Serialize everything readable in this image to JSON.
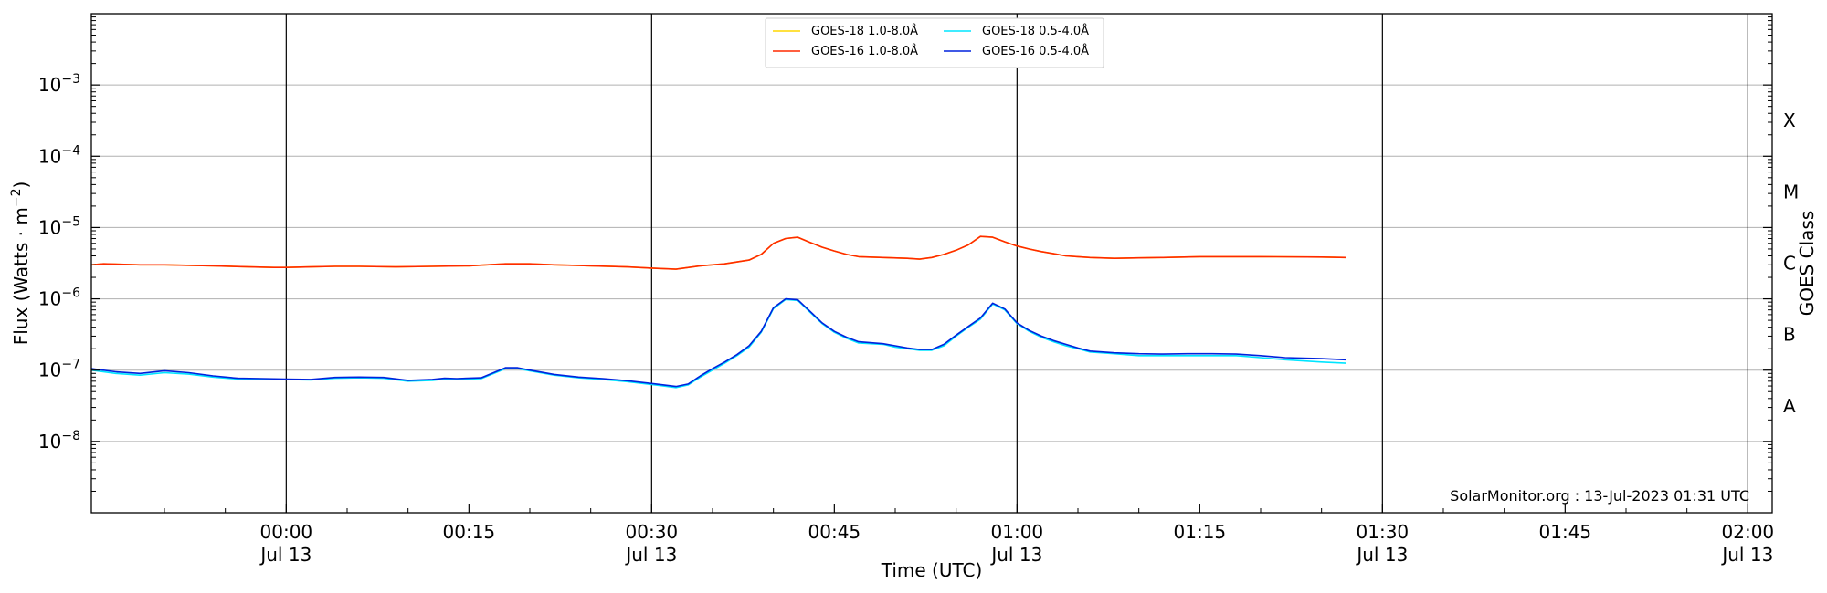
{
  "chart_data": {
    "type": "line",
    "title": "",
    "xlabel": "Time (UTC)",
    "ylabel": "Flux (Watts · m",
    "ylabel_sup": "−2",
    "ylabel_close": ")",
    "y2label": "GOES Class",
    "yscale": "log",
    "xlim": [
      "2023-07-12 23:44",
      "2023-07-13 02:02"
    ],
    "ylim": [
      1e-09,
      0.01
    ],
    "x_ticks": [
      {
        "t": "2023-07-13 00:00",
        "time": "00:00",
        "date": "Jul 13"
      },
      {
        "t": "2023-07-13 00:15",
        "time": "00:15",
        "date": ""
      },
      {
        "t": "2023-07-13 00:30",
        "time": "00:30",
        "date": "Jul 13"
      },
      {
        "t": "2023-07-13 00:45",
        "time": "00:45",
        "date": ""
      },
      {
        "t": "2023-07-13 01:00",
        "time": "01:00",
        "date": "Jul 13"
      },
      {
        "t": "2023-07-13 01:15",
        "time": "01:15",
        "date": ""
      },
      {
        "t": "2023-07-13 01:30",
        "time": "01:30",
        "date": "Jul 13"
      },
      {
        "t": "2023-07-13 01:45",
        "time": "01:45",
        "date": ""
      },
      {
        "t": "2023-07-13 02:00",
        "time": "02:00",
        "date": "Jul 13"
      }
    ],
    "vertical_lines": [
      "2023-07-13 00:00",
      "2023-07-13 00:30",
      "2023-07-13 01:00",
      "2023-07-13 01:30",
      "2023-07-13 02:00"
    ],
    "y_ticks": [
      {
        "value": 1e-08,
        "base": "10",
        "exp": "−8"
      },
      {
        "value": 1e-07,
        "base": "10",
        "exp": "−7"
      },
      {
        "value": 1e-06,
        "base": "10",
        "exp": "−6"
      },
      {
        "value": 1e-05,
        "base": "10",
        "exp": "−5"
      },
      {
        "value": 0.0001,
        "base": "10",
        "exp": "−4"
      },
      {
        "value": 0.001,
        "base": "10",
        "exp": "−3"
      }
    ],
    "gridlines_y": [
      1e-08,
      1e-07,
      1e-06,
      1e-05,
      0.0001,
      0.001
    ],
    "goes_classes": [
      {
        "label": "A",
        "value": 3.16e-08
      },
      {
        "label": "B",
        "value": 3.16e-07
      },
      {
        "label": "C",
        "value": 3.16e-06
      },
      {
        "label": "M",
        "value": 3.16e-05
      },
      {
        "label": "X",
        "value": 0.000316
      }
    ],
    "grid": "horizontal",
    "legend_position": "top-center",
    "legend": [
      {
        "label": "GOES-18 1.0-8.0Å",
        "color": "#ffd700"
      },
      {
        "label": "GOES-18 0.5-4.0Å",
        "color": "#00e5ff"
      },
      {
        "label": "GOES-16 1.0-8.0Å",
        "color": "#ff2a00"
      },
      {
        "label": "GOES-16 0.5-4.0Å",
        "color": "#0022dd"
      }
    ],
    "credit": "SolarMonitor.org : 13-Jul-2023 01:31 UTC",
    "series": [
      {
        "name": "GOES-16 1.0-8.0Å",
        "color": "#ff2a00",
        "x_minutes_from_midnight": [
          -16,
          -15,
          -12,
          -10,
          -6,
          -3,
          -1,
          0,
          2,
          4,
          6,
          9,
          12,
          15,
          18,
          20,
          22,
          25,
          28,
          30,
          32,
          34,
          36,
          38,
          39,
          40,
          41,
          42,
          43,
          44,
          45,
          46,
          47,
          49,
          51,
          52,
          53,
          54,
          55,
          56,
          57,
          58,
          59,
          60,
          61,
          62,
          63,
          64,
          65,
          66,
          68,
          70,
          72,
          75,
          80,
          85,
          87
        ],
        "y": [
          3e-06,
          3.1e-06,
          3e-06,
          3e-06,
          2.9e-06,
          2.8e-06,
          2.75e-06,
          2.75e-06,
          2.8e-06,
          2.85e-06,
          2.85e-06,
          2.8e-06,
          2.85e-06,
          2.9e-06,
          3.1e-06,
          3.1e-06,
          3e-06,
          2.9e-06,
          2.8e-06,
          2.7e-06,
          2.6e-06,
          2.9e-06,
          3.1e-06,
          3.5e-06,
          4.2e-06,
          6e-06,
          7e-06,
          7.3e-06,
          6.2e-06,
          5.3e-06,
          4.7e-06,
          4.2e-06,
          3.9e-06,
          3.8e-06,
          3.7e-06,
          3.6e-06,
          3.8e-06,
          4.2e-06,
          4.8e-06,
          5.7e-06,
          7.5e-06,
          7.3e-06,
          6.3e-06,
          5.5e-06,
          5e-06,
          4.6e-06,
          4.3e-06,
          4e-06,
          3.9e-06,
          3.8e-06,
          3.7e-06,
          3.75e-06,
          3.8e-06,
          3.9e-06,
          3.9e-06,
          3.85e-06,
          3.8e-06
        ]
      },
      {
        "name": "GOES-18 1.0-8.0Å",
        "color": "#ffd700",
        "x_minutes_from_midnight": [
          -16,
          -15,
          -12,
          -10,
          -6,
          -3,
          -1,
          0,
          2,
          4,
          6,
          9,
          12,
          15,
          18,
          20,
          22,
          25,
          28,
          30,
          32,
          34,
          36,
          38,
          39,
          40,
          41,
          42,
          43,
          44,
          45,
          46,
          47,
          49,
          51,
          52,
          53,
          54,
          55,
          56,
          57,
          58,
          59,
          60,
          61,
          62,
          63,
          64,
          65,
          66,
          68,
          70,
          72,
          75,
          80,
          85,
          87
        ],
        "y": [
          3e-06,
          3.1e-06,
          3e-06,
          3e-06,
          2.9e-06,
          2.8e-06,
          2.75e-06,
          2.75e-06,
          2.8e-06,
          2.85e-06,
          2.85e-06,
          2.8e-06,
          2.85e-06,
          2.9e-06,
          3.1e-06,
          3.1e-06,
          3e-06,
          2.9e-06,
          2.8e-06,
          2.7e-06,
          2.6e-06,
          2.9e-06,
          3.1e-06,
          3.5e-06,
          4.2e-06,
          6e-06,
          7e-06,
          7.3e-06,
          6.2e-06,
          5.3e-06,
          4.7e-06,
          4.2e-06,
          3.9e-06,
          3.8e-06,
          3.7e-06,
          3.6e-06,
          3.8e-06,
          4.2e-06,
          4.8e-06,
          5.7e-06,
          7.5e-06,
          7.3e-06,
          6.3e-06,
          5.5e-06,
          5e-06,
          4.6e-06,
          4.3e-06,
          4e-06,
          3.9e-06,
          3.8e-06,
          3.7e-06,
          3.75e-06,
          3.8e-06,
          3.9e-06,
          3.9e-06,
          3.85e-06,
          3.8e-06
        ]
      },
      {
        "name": "GOES-18 0.5-4.0Å",
        "color": "#00e5ff",
        "x_minutes_from_midnight": [
          -16,
          -14,
          -12,
          -10,
          -8,
          -6,
          -4,
          -2,
          0,
          2,
          4,
          6,
          8,
          10,
          12,
          13,
          14,
          16,
          18,
          19,
          20,
          22,
          24,
          26,
          28,
          30,
          31,
          32,
          33,
          34,
          35,
          36,
          37,
          38,
          39,
          40,
          41,
          42,
          43,
          44,
          45,
          46,
          47,
          49,
          50,
          51,
          52,
          53,
          54,
          55,
          56,
          57,
          58,
          59,
          60,
          61,
          62,
          63,
          64,
          65,
          66,
          68,
          70,
          72,
          74,
          76,
          78,
          80,
          82,
          85,
          87
        ],
        "y": [
          1e-07,
          9e-08,
          8.5e-08,
          9.2e-08,
          8.8e-08,
          8e-08,
          7.5e-08,
          7.5e-08,
          7.4e-08,
          7.3e-08,
          7.7e-08,
          7.8e-08,
          7.7e-08,
          7e-08,
          7.2e-08,
          7.5e-08,
          7.4e-08,
          7.6e-08,
          1.05e-07,
          1.05e-07,
          9.8e-08,
          8.5e-08,
          7.8e-08,
          7.4e-08,
          6.9e-08,
          6.3e-08,
          6e-08,
          5.7e-08,
          6.2e-08,
          8e-08,
          1e-07,
          1.25e-07,
          1.6e-07,
          2.1e-07,
          3.4e-07,
          7.3e-07,
          9.8e-07,
          9.5e-07,
          6.5e-07,
          4.5e-07,
          3.4e-07,
          2.8e-07,
          2.4e-07,
          2.3e-07,
          2.1e-07,
          2e-07,
          1.9e-07,
          1.9e-07,
          2.2e-07,
          3e-07,
          4e-07,
          5.2e-07,
          8.5e-07,
          7e-07,
          4.5e-07,
          3.5e-07,
          2.9e-07,
          2.5e-07,
          2.2e-07,
          2e-07,
          1.8e-07,
          1.7e-07,
          1.6e-07,
          1.6e-07,
          1.6e-07,
          1.6e-07,
          1.6e-07,
          1.5e-07,
          1.4e-07,
          1.3e-07,
          1.25e-07
        ]
      },
      {
        "name": "GOES-16 0.5-4.0Å",
        "color": "#0022dd",
        "x_minutes_from_midnight": [
          -16,
          -14,
          -12,
          -10,
          -8,
          -6,
          -4,
          -2,
          0,
          2,
          4,
          6,
          8,
          10,
          12,
          13,
          14,
          16,
          18,
          19,
          20,
          22,
          24,
          26,
          28,
          30,
          31,
          32,
          33,
          34,
          35,
          36,
          37,
          38,
          39,
          40,
          41,
          42,
          43,
          44,
          45,
          46,
          47,
          49,
          50,
          51,
          52,
          53,
          54,
          55,
          56,
          57,
          58,
          59,
          60,
          61,
          62,
          63,
          64,
          65,
          66,
          68,
          70,
          72,
          74,
          76,
          78,
          80,
          82,
          85,
          87
        ],
        "y": [
          1.05e-07,
          9.5e-08,
          9e-08,
          9.8e-08,
          9.2e-08,
          8.3e-08,
          7.7e-08,
          7.6e-08,
          7.5e-08,
          7.4e-08,
          7.9e-08,
          8e-08,
          7.9e-08,
          7.2e-08,
          7.4e-08,
          7.7e-08,
          7.6e-08,
          7.8e-08,
          1.08e-07,
          1.08e-07,
          1e-07,
          8.7e-08,
          8e-08,
          7.6e-08,
          7.1e-08,
          6.5e-08,
          6.2e-08,
          5.9e-08,
          6.4e-08,
          8.3e-08,
          1.05e-07,
          1.3e-07,
          1.65e-07,
          2.2e-07,
          3.5e-07,
          7.5e-07,
          1e-06,
          9.7e-07,
          6.7e-07,
          4.6e-07,
          3.5e-07,
          2.9e-07,
          2.5e-07,
          2.35e-07,
          2.2e-07,
          2.05e-07,
          1.95e-07,
          1.95e-07,
          2.3e-07,
          3.1e-07,
          4.1e-07,
          5.4e-07,
          8.7e-07,
          7.2e-07,
          4.6e-07,
          3.6e-07,
          3e-07,
          2.6e-07,
          2.3e-07,
          2.05e-07,
          1.85e-07,
          1.75e-07,
          1.7e-07,
          1.68e-07,
          1.7e-07,
          1.7e-07,
          1.68e-07,
          1.6e-07,
          1.5e-07,
          1.45e-07,
          1.4e-07
        ]
      }
    ]
  }
}
